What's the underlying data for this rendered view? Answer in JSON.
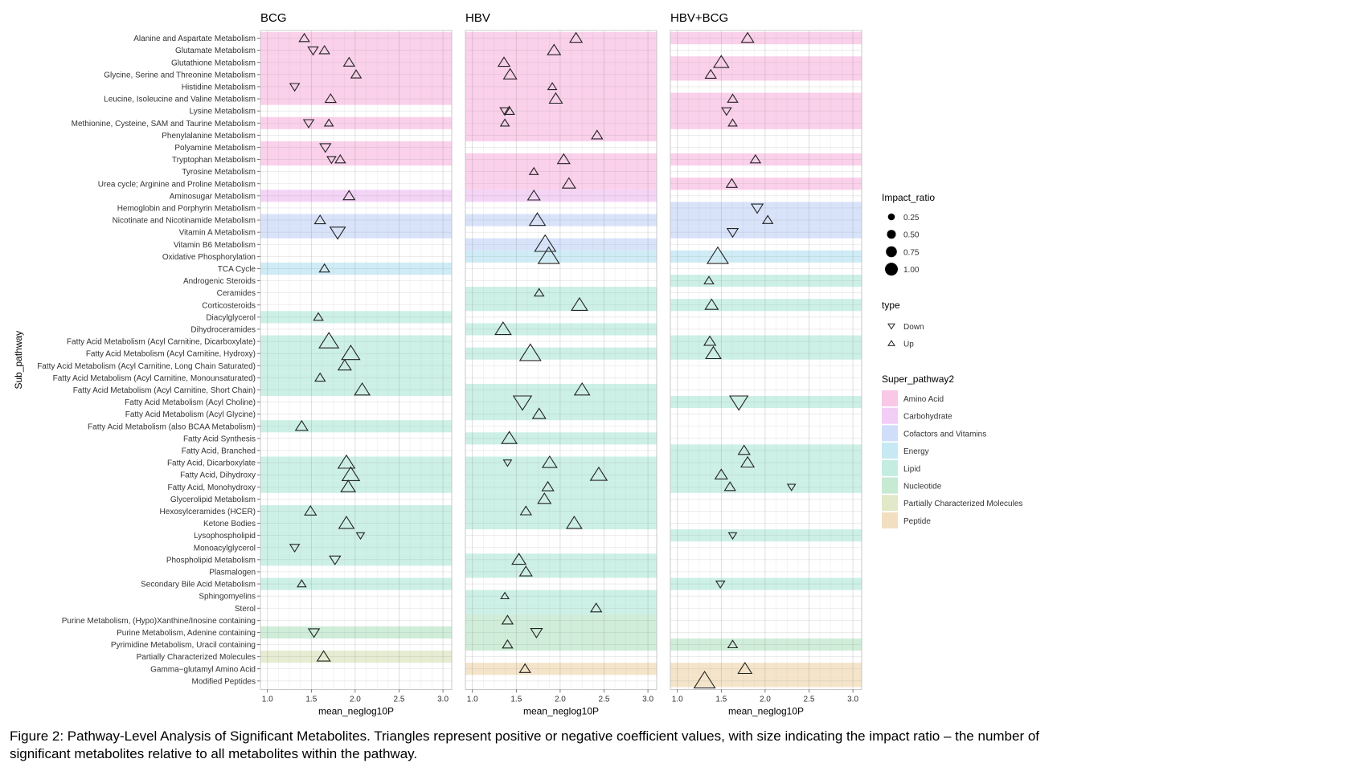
{
  "chart_data": {
    "type": "scatter",
    "ylabel": "Sub_pathway",
    "xlabel": "mean_neglog10P",
    "xlim": [
      0.92,
      3.1
    ],
    "xticks": [
      "1.0",
      "1.5",
      "2.0",
      "2.5",
      "3.0"
    ],
    "grid": true,
    "panels": [
      "BCG",
      "HBV",
      "HBV+BCG"
    ],
    "categories": [
      "Alanine and Aspartate Metabolism",
      "Glutamate Metabolism",
      "Glutathione Metabolism",
      "Glycine, Serine and Threonine Metabolism",
      "Histidine Metabolism",
      "Leucine, Isoleucine and Valine Metabolism",
      "Lysine Metabolism",
      "Methionine, Cysteine, SAM and Taurine Metabolism",
      "Phenylalanine Metabolism",
      "Polyamine Metabolism",
      "Tryptophan Metabolism",
      "Tyrosine Metabolism",
      "Urea cycle; Arginine and Proline Metabolism",
      "Aminosugar Metabolism",
      "Hemoglobin and Porphyrin Metabolism",
      "Nicotinate and Nicotinamide Metabolism",
      "Vitamin A Metabolism",
      "Vitamin B6 Metabolism",
      "Oxidative Phosphorylation",
      "TCA Cycle",
      "Androgenic Steroids",
      "Ceramides",
      "Corticosteroids",
      "Diacylglycerol",
      "Dihydroceramides",
      "Fatty Acid Metabolism (Acyl Carnitine, Dicarboxylate)",
      "Fatty Acid Metabolism (Acyl Carnitine, Hydroxy)",
      "Fatty Acid Metabolism (Acyl Carnitine, Long Chain Saturated)",
      "Fatty Acid Metabolism (Acyl Carnitine, Monounsaturated)",
      "Fatty Acid Metabolism (Acyl Carnitine, Short Chain)",
      "Fatty Acid Metabolism (Acyl Choline)",
      "Fatty Acid Metabolism (Acyl Glycine)",
      "Fatty Acid Metabolism (also BCAA Metabolism)",
      "Fatty Acid Synthesis",
      "Fatty Acid, Branched",
      "Fatty Acid, Dicarboxylate",
      "Fatty Acid, Dihydroxy",
      "Fatty Acid, Monohydroxy",
      "Glycerolipid Metabolism",
      "Hexosylceramides (HCER)",
      "Ketone Bodies",
      "Lysophospholipid",
      "Monoacylglycerol",
      "Phospholipid Metabolism",
      "Plasmalogen",
      "Secondary Bile Acid Metabolism",
      "Sphingomyelins",
      "Sterol",
      "Purine Metabolism, (Hypo)Xanthine/Inosine containing",
      "Purine Metabolism, Adenine containing",
      "Pyrimidine Metabolism, Uracil containing",
      "Partially Characterized Molecules",
      "Gamma−glutamyl Amino Acid",
      "Modified Peptides"
    ],
    "category_super": [
      "Amino Acid",
      "Amino Acid",
      "Amino Acid",
      "Amino Acid",
      "Amino Acid",
      "Amino Acid",
      "Amino Acid",
      "Amino Acid",
      "Amino Acid",
      "Amino Acid",
      "Amino Acid",
      "Amino Acid",
      "Amino Acid",
      "Carbohydrate",
      "Cofactors and Vitamins",
      "Cofactors and Vitamins",
      "Cofactors and Vitamins",
      "Cofactors and Vitamins",
      "Energy",
      "Energy",
      "Lipid",
      "Lipid",
      "Lipid",
      "Lipid",
      "Lipid",
      "Lipid",
      "Lipid",
      "Lipid",
      "Lipid",
      "Lipid",
      "Lipid",
      "Lipid",
      "Lipid",
      "Lipid",
      "Lipid",
      "Lipid",
      "Lipid",
      "Lipid",
      "Lipid",
      "Lipid",
      "Lipid",
      "Lipid",
      "Lipid",
      "Lipid",
      "Lipid",
      "Lipid",
      "Lipid",
      "Lipid",
      "Nucleotide",
      "Nucleotide",
      "Nucleotide",
      "Partially Characterized Molecules",
      "Peptide",
      "Peptide"
    ],
    "bands": {
      "BCG": [
        0,
        1,
        2,
        3,
        4,
        5,
        7,
        9,
        10,
        13,
        15,
        16,
        19,
        23,
        25,
        26,
        27,
        28,
        29,
        32,
        35,
        36,
        37,
        39,
        40,
        41,
        42,
        43,
        45,
        49,
        51
      ],
      "HBV": [
        0,
        1,
        2,
        3,
        4,
        5,
        6,
        7,
        8,
        10,
        11,
        12,
        13,
        15,
        17,
        18,
        21,
        22,
        24,
        26,
        29,
        30,
        31,
        33,
        35,
        36,
        37,
        38,
        39,
        40,
        43,
        44,
        46,
        47,
        48,
        49,
        50,
        52
      ],
      "HBV+BCG": [
        0,
        2,
        3,
        5,
        6,
        7,
        10,
        12,
        14,
        15,
        16,
        18,
        20,
        22,
        25,
        26,
        30,
        34,
        35,
        36,
        37,
        41,
        45,
        50,
        52,
        53
      ]
    },
    "series": [
      {
        "panel": "BCG",
        "points": [
          {
            "cat": 0,
            "x": 1.42,
            "type": "Up",
            "impact": 0.25
          },
          {
            "cat": 1,
            "x": 1.52,
            "type": "Down",
            "impact": 0.25
          },
          {
            "cat": 1,
            "x": 1.65,
            "type": "Up",
            "impact": 0.25
          },
          {
            "cat": 2,
            "x": 1.93,
            "type": "Up",
            "impact": 0.3
          },
          {
            "cat": 3,
            "x": 2.01,
            "type": "Up",
            "impact": 0.25
          },
          {
            "cat": 4,
            "x": 1.31,
            "type": "Down",
            "impact": 0.2
          },
          {
            "cat": 5,
            "x": 1.72,
            "type": "Up",
            "impact": 0.3
          },
          {
            "cat": 7,
            "x": 1.47,
            "type": "Down",
            "impact": 0.25
          },
          {
            "cat": 7,
            "x": 1.7,
            "type": "Up",
            "impact": 0.15
          },
          {
            "cat": 9,
            "x": 1.66,
            "type": "Down",
            "impact": 0.3
          },
          {
            "cat": 10,
            "x": 1.73,
            "type": "Down",
            "impact": 0.15
          },
          {
            "cat": 10,
            "x": 1.83,
            "type": "Up",
            "impact": 0.25
          },
          {
            "cat": 13,
            "x": 1.93,
            "type": "Up",
            "impact": 0.35
          },
          {
            "cat": 15,
            "x": 1.6,
            "type": "Up",
            "impact": 0.3
          },
          {
            "cat": 16,
            "x": 1.8,
            "type": "Down",
            "impact": 0.6
          },
          {
            "cat": 19,
            "x": 1.65,
            "type": "Up",
            "impact": 0.25
          },
          {
            "cat": 23,
            "x": 1.58,
            "type": "Up",
            "impact": 0.2
          },
          {
            "cat": 25,
            "x": 1.7,
            "type": "Up",
            "impact": 0.9
          },
          {
            "cat": 26,
            "x": 1.95,
            "type": "Up",
            "impact": 0.8
          },
          {
            "cat": 27,
            "x": 1.88,
            "type": "Up",
            "impact": 0.45
          },
          {
            "cat": 28,
            "x": 1.6,
            "type": "Up",
            "impact": 0.25
          },
          {
            "cat": 29,
            "x": 2.08,
            "type": "Up",
            "impact": 0.6
          },
          {
            "cat": 32,
            "x": 1.39,
            "type": "Up",
            "impact": 0.4
          },
          {
            "cat": 35,
            "x": 1.9,
            "type": "Up",
            "impact": 0.7
          },
          {
            "cat": 36,
            "x": 1.95,
            "type": "Up",
            "impact": 0.75
          },
          {
            "cat": 37,
            "x": 1.92,
            "type": "Up",
            "impact": 0.55
          },
          {
            "cat": 39,
            "x": 1.49,
            "type": "Up",
            "impact": 0.35
          },
          {
            "cat": 40,
            "x": 1.9,
            "type": "Up",
            "impact": 0.6
          },
          {
            "cat": 41,
            "x": 2.06,
            "type": "Down",
            "impact": 0.1
          },
          {
            "cat": 42,
            "x": 1.31,
            "type": "Down",
            "impact": 0.2
          },
          {
            "cat": 43,
            "x": 1.77,
            "type": "Down",
            "impact": 0.3
          },
          {
            "cat": 45,
            "x": 1.39,
            "type": "Up",
            "impact": 0.15
          },
          {
            "cat": 49,
            "x": 1.53,
            "type": "Down",
            "impact": 0.3
          },
          {
            "cat": 51,
            "x": 1.64,
            "type": "Up",
            "impact": 0.45
          }
        ]
      },
      {
        "panel": "HBV",
        "points": [
          {
            "cat": 0,
            "x": 2.18,
            "type": "Up",
            "impact": 0.4
          },
          {
            "cat": 1,
            "x": 1.93,
            "type": "Up",
            "impact": 0.45
          },
          {
            "cat": 2,
            "x": 1.36,
            "type": "Up",
            "impact": 0.35
          },
          {
            "cat": 3,
            "x": 1.43,
            "type": "Up",
            "impact": 0.45
          },
          {
            "cat": 4,
            "x": 1.91,
            "type": "Up",
            "impact": 0.15
          },
          {
            "cat": 5,
            "x": 1.95,
            "type": "Up",
            "impact": 0.45
          },
          {
            "cat": 6,
            "x": 1.37,
            "type": "Down",
            "impact": 0.2
          },
          {
            "cat": 6,
            "x": 1.42,
            "type": "Up",
            "impact": 0.25
          },
          {
            "cat": 7,
            "x": 1.37,
            "type": "Up",
            "impact": 0.15
          },
          {
            "cat": 8,
            "x": 2.42,
            "type": "Up",
            "impact": 0.3
          },
          {
            "cat": 10,
            "x": 2.04,
            "type": "Up",
            "impact": 0.4
          },
          {
            "cat": 11,
            "x": 1.7,
            "type": "Up",
            "impact": 0.15
          },
          {
            "cat": 12,
            "x": 2.1,
            "type": "Up",
            "impact": 0.45
          },
          {
            "cat": 13,
            "x": 1.7,
            "type": "Up",
            "impact": 0.4
          },
          {
            "cat": 15,
            "x": 1.74,
            "type": "Up",
            "impact": 0.65
          },
          {
            "cat": 17,
            "x": 1.83,
            "type": "Up",
            "impact": 1.0
          },
          {
            "cat": 18,
            "x": 1.87,
            "type": "Up",
            "impact": 1.0
          },
          {
            "cat": 21,
            "x": 1.76,
            "type": "Up",
            "impact": 0.2
          },
          {
            "cat": 22,
            "x": 2.22,
            "type": "Up",
            "impact": 0.65
          },
          {
            "cat": 24,
            "x": 1.35,
            "type": "Up",
            "impact": 0.65
          },
          {
            "cat": 26,
            "x": 1.66,
            "type": "Up",
            "impact": 1.0
          },
          {
            "cat": 29,
            "x": 2.25,
            "type": "Up",
            "impact": 0.6
          },
          {
            "cat": 30,
            "x": 1.57,
            "type": "Down",
            "impact": 0.8
          },
          {
            "cat": 31,
            "x": 1.76,
            "type": "Up",
            "impact": 0.45
          },
          {
            "cat": 33,
            "x": 1.42,
            "type": "Up",
            "impact": 0.6
          },
          {
            "cat": 35,
            "x": 1.4,
            "type": "Down",
            "impact": 0.1
          },
          {
            "cat": 35,
            "x": 1.88,
            "type": "Up",
            "impact": 0.55
          },
          {
            "cat": 36,
            "x": 2.44,
            "type": "Up",
            "impact": 0.7
          },
          {
            "cat": 37,
            "x": 1.86,
            "type": "Up",
            "impact": 0.35
          },
          {
            "cat": 38,
            "x": 1.82,
            "type": "Up",
            "impact": 0.45
          },
          {
            "cat": 39,
            "x": 1.61,
            "type": "Up",
            "impact": 0.3
          },
          {
            "cat": 40,
            "x": 2.16,
            "type": "Up",
            "impact": 0.6
          },
          {
            "cat": 43,
            "x": 1.53,
            "type": "Up",
            "impact": 0.5
          },
          {
            "cat": 44,
            "x": 1.61,
            "type": "Up",
            "impact": 0.4
          },
          {
            "cat": 46,
            "x": 1.37,
            "type": "Up",
            "impact": 0.1
          },
          {
            "cat": 47,
            "x": 2.41,
            "type": "Up",
            "impact": 0.3
          },
          {
            "cat": 48,
            "x": 1.4,
            "type": "Up",
            "impact": 0.3
          },
          {
            "cat": 49,
            "x": 1.73,
            "type": "Down",
            "impact": 0.35
          },
          {
            "cat": 50,
            "x": 1.4,
            "type": "Up",
            "impact": 0.25
          },
          {
            "cat": 52,
            "x": 1.6,
            "type": "Up",
            "impact": 0.3
          }
        ]
      },
      {
        "panel": "HBV+BCG",
        "points": [
          {
            "cat": 0,
            "x": 1.8,
            "type": "Up",
            "impact": 0.4
          },
          {
            "cat": 2,
            "x": 1.5,
            "type": "Up",
            "impact": 0.6
          },
          {
            "cat": 3,
            "x": 1.38,
            "type": "Up",
            "impact": 0.3
          },
          {
            "cat": 5,
            "x": 1.63,
            "type": "Up",
            "impact": 0.25
          },
          {
            "cat": 6,
            "x": 1.56,
            "type": "Down",
            "impact": 0.2
          },
          {
            "cat": 7,
            "x": 1.63,
            "type": "Up",
            "impact": 0.15
          },
          {
            "cat": 10,
            "x": 1.89,
            "type": "Up",
            "impact": 0.25
          },
          {
            "cat": 12,
            "x": 1.62,
            "type": "Up",
            "impact": 0.3
          },
          {
            "cat": 14,
            "x": 1.91,
            "type": "Down",
            "impact": 0.35
          },
          {
            "cat": 15,
            "x": 2.03,
            "type": "Up",
            "impact": 0.25
          },
          {
            "cat": 16,
            "x": 1.63,
            "type": "Down",
            "impact": 0.3
          },
          {
            "cat": 18,
            "x": 1.46,
            "type": "Up",
            "impact": 1.0
          },
          {
            "cat": 20,
            "x": 1.36,
            "type": "Up",
            "impact": 0.2
          },
          {
            "cat": 22,
            "x": 1.39,
            "type": "Up",
            "impact": 0.45
          },
          {
            "cat": 25,
            "x": 1.37,
            "type": "Up",
            "impact": 0.35
          },
          {
            "cat": 26,
            "x": 1.41,
            "type": "Up",
            "impact": 0.6
          },
          {
            "cat": 30,
            "x": 1.7,
            "type": "Down",
            "impact": 0.8
          },
          {
            "cat": 34,
            "x": 1.76,
            "type": "Up",
            "impact": 0.35
          },
          {
            "cat": 35,
            "x": 1.8,
            "type": "Up",
            "impact": 0.45
          },
          {
            "cat": 36,
            "x": 1.5,
            "type": "Up",
            "impact": 0.4
          },
          {
            "cat": 37,
            "x": 1.6,
            "type": "Up",
            "impact": 0.3
          },
          {
            "cat": 37,
            "x": 2.3,
            "type": "Down",
            "impact": 0.1
          },
          {
            "cat": 41,
            "x": 1.63,
            "type": "Down",
            "impact": 0.1
          },
          {
            "cat": 45,
            "x": 1.49,
            "type": "Down",
            "impact": 0.15
          },
          {
            "cat": 50,
            "x": 1.63,
            "type": "Up",
            "impact": 0.2
          },
          {
            "cat": 52,
            "x": 1.77,
            "type": "Up",
            "impact": 0.5
          },
          {
            "cat": 53,
            "x": 1.31,
            "type": "Up",
            "impact": 1.0
          }
        ]
      }
    ],
    "legend_placement": "right",
    "legend": {
      "impact": {
        "title": "Impact_ratio",
        "values": [
          0.25,
          0.5,
          0.75,
          1.0
        ],
        "labels": [
          "0.25",
          "0.50",
          "0.75",
          "1.00"
        ]
      },
      "type": {
        "title": "type",
        "entries": [
          "Down",
          "Up"
        ]
      },
      "super": {
        "title": "Super_pathway2",
        "entries": [
          {
            "name": "Amino Acid",
            "color": "#f9c8e6"
          },
          {
            "name": "Carbohydrate",
            "color": "#f2cdf5"
          },
          {
            "name": "Cofactors and Vitamins",
            "color": "#d1def9"
          },
          {
            "name": "Energy",
            "color": "#c7e9f4"
          },
          {
            "name": "Lipid",
            "color": "#c4ede2"
          },
          {
            "name": "Nucleotide",
            "color": "#c7ead2"
          },
          {
            "name": "Partially Characterized Molecules",
            "color": "#e2e9c9"
          },
          {
            "name": "Peptide",
            "color": "#f2dfc0"
          }
        ]
      }
    }
  },
  "caption": "Figure 2: Pathway-Level Analysis of Significant Metabolites. Triangles represent positive or negative coefficient values, with size indicating the impact ratio – the number of significant metabolites relative to all metabolites within the pathway."
}
